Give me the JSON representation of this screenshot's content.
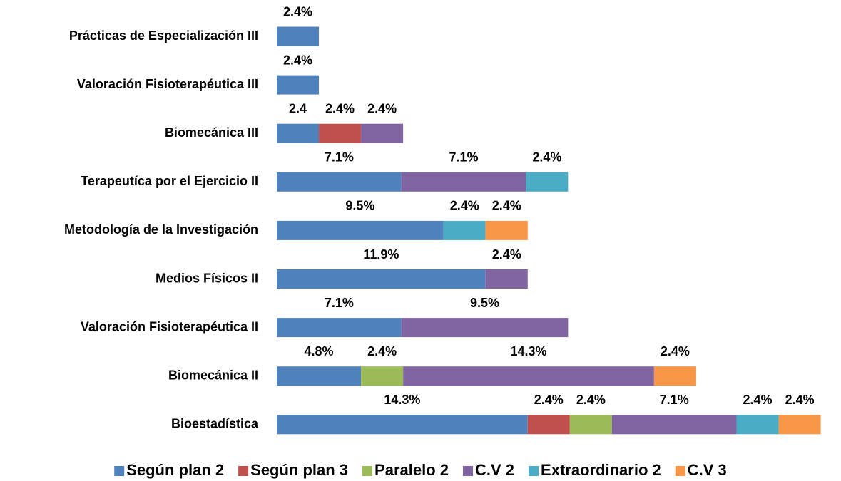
{
  "chart_data": {
    "type": "stacked_bar_horizontal",
    "categories": [
      "Prácticas de Especialización III",
      "Valoración Fisioterapéutica III",
      "Biomecánica III",
      "Terapeutíca por el Ejercicio II",
      "Metodología de la Investigación",
      "Medios Físicos II",
      "Valoración Fisioterapéutica II",
      "Biomecánica II",
      "Bioestadística"
    ],
    "series": [
      {
        "name": "Según plan 2",
        "color": "#4f81bd",
        "values": [
          2.4,
          2.4,
          2.4,
          7.1,
          9.5,
          11.9,
          7.1,
          4.8,
          14.3
        ],
        "value_labels": [
          "2.4%",
          "2.4%",
          "2.4",
          "7.1%",
          "9.5%",
          "11.9%",
          "7.1%",
          "4.8%",
          "14.3%"
        ]
      },
      {
        "name": "Según plan 3",
        "color": "#c0504d",
        "values": [
          null,
          null,
          2.4,
          null,
          null,
          null,
          null,
          null,
          2.4
        ],
        "value_labels": [
          null,
          null,
          "2.4%",
          null,
          null,
          null,
          null,
          null,
          "2.4%"
        ]
      },
      {
        "name": "Paralelo 2",
        "color": "#9bbb59",
        "values": [
          null,
          null,
          null,
          null,
          null,
          null,
          null,
          2.4,
          2.4
        ],
        "value_labels": [
          null,
          null,
          null,
          null,
          null,
          null,
          null,
          "2.4%",
          "2.4%"
        ]
      },
      {
        "name": "C.V 2",
        "color": "#8064a2",
        "values": [
          null,
          null,
          2.4,
          7.1,
          null,
          2.4,
          9.5,
          14.3,
          7.1
        ],
        "value_labels": [
          null,
          null,
          "2.4%",
          "7.1%",
          null,
          "2.4%",
          "9.5%",
          "14.3%",
          "7.1%"
        ]
      },
      {
        "name": "Extraordinario 2",
        "color": "#4bacc6",
        "values": [
          null,
          null,
          null,
          2.4,
          2.4,
          null,
          null,
          null,
          2.4
        ],
        "value_labels": [
          null,
          null,
          null,
          "2.4%",
          "2.4%",
          null,
          null,
          null,
          "2.4%"
        ]
      },
      {
        "name": "C.V 3",
        "color": "#f79646",
        "values": [
          null,
          null,
          null,
          null,
          2.4,
          null,
          null,
          2.4,
          2.4
        ],
        "value_labels": [
          null,
          null,
          null,
          null,
          "2.4%",
          null,
          null,
          "2.4%",
          "2.4%"
        ]
      }
    ],
    "legend": "bottom"
  }
}
